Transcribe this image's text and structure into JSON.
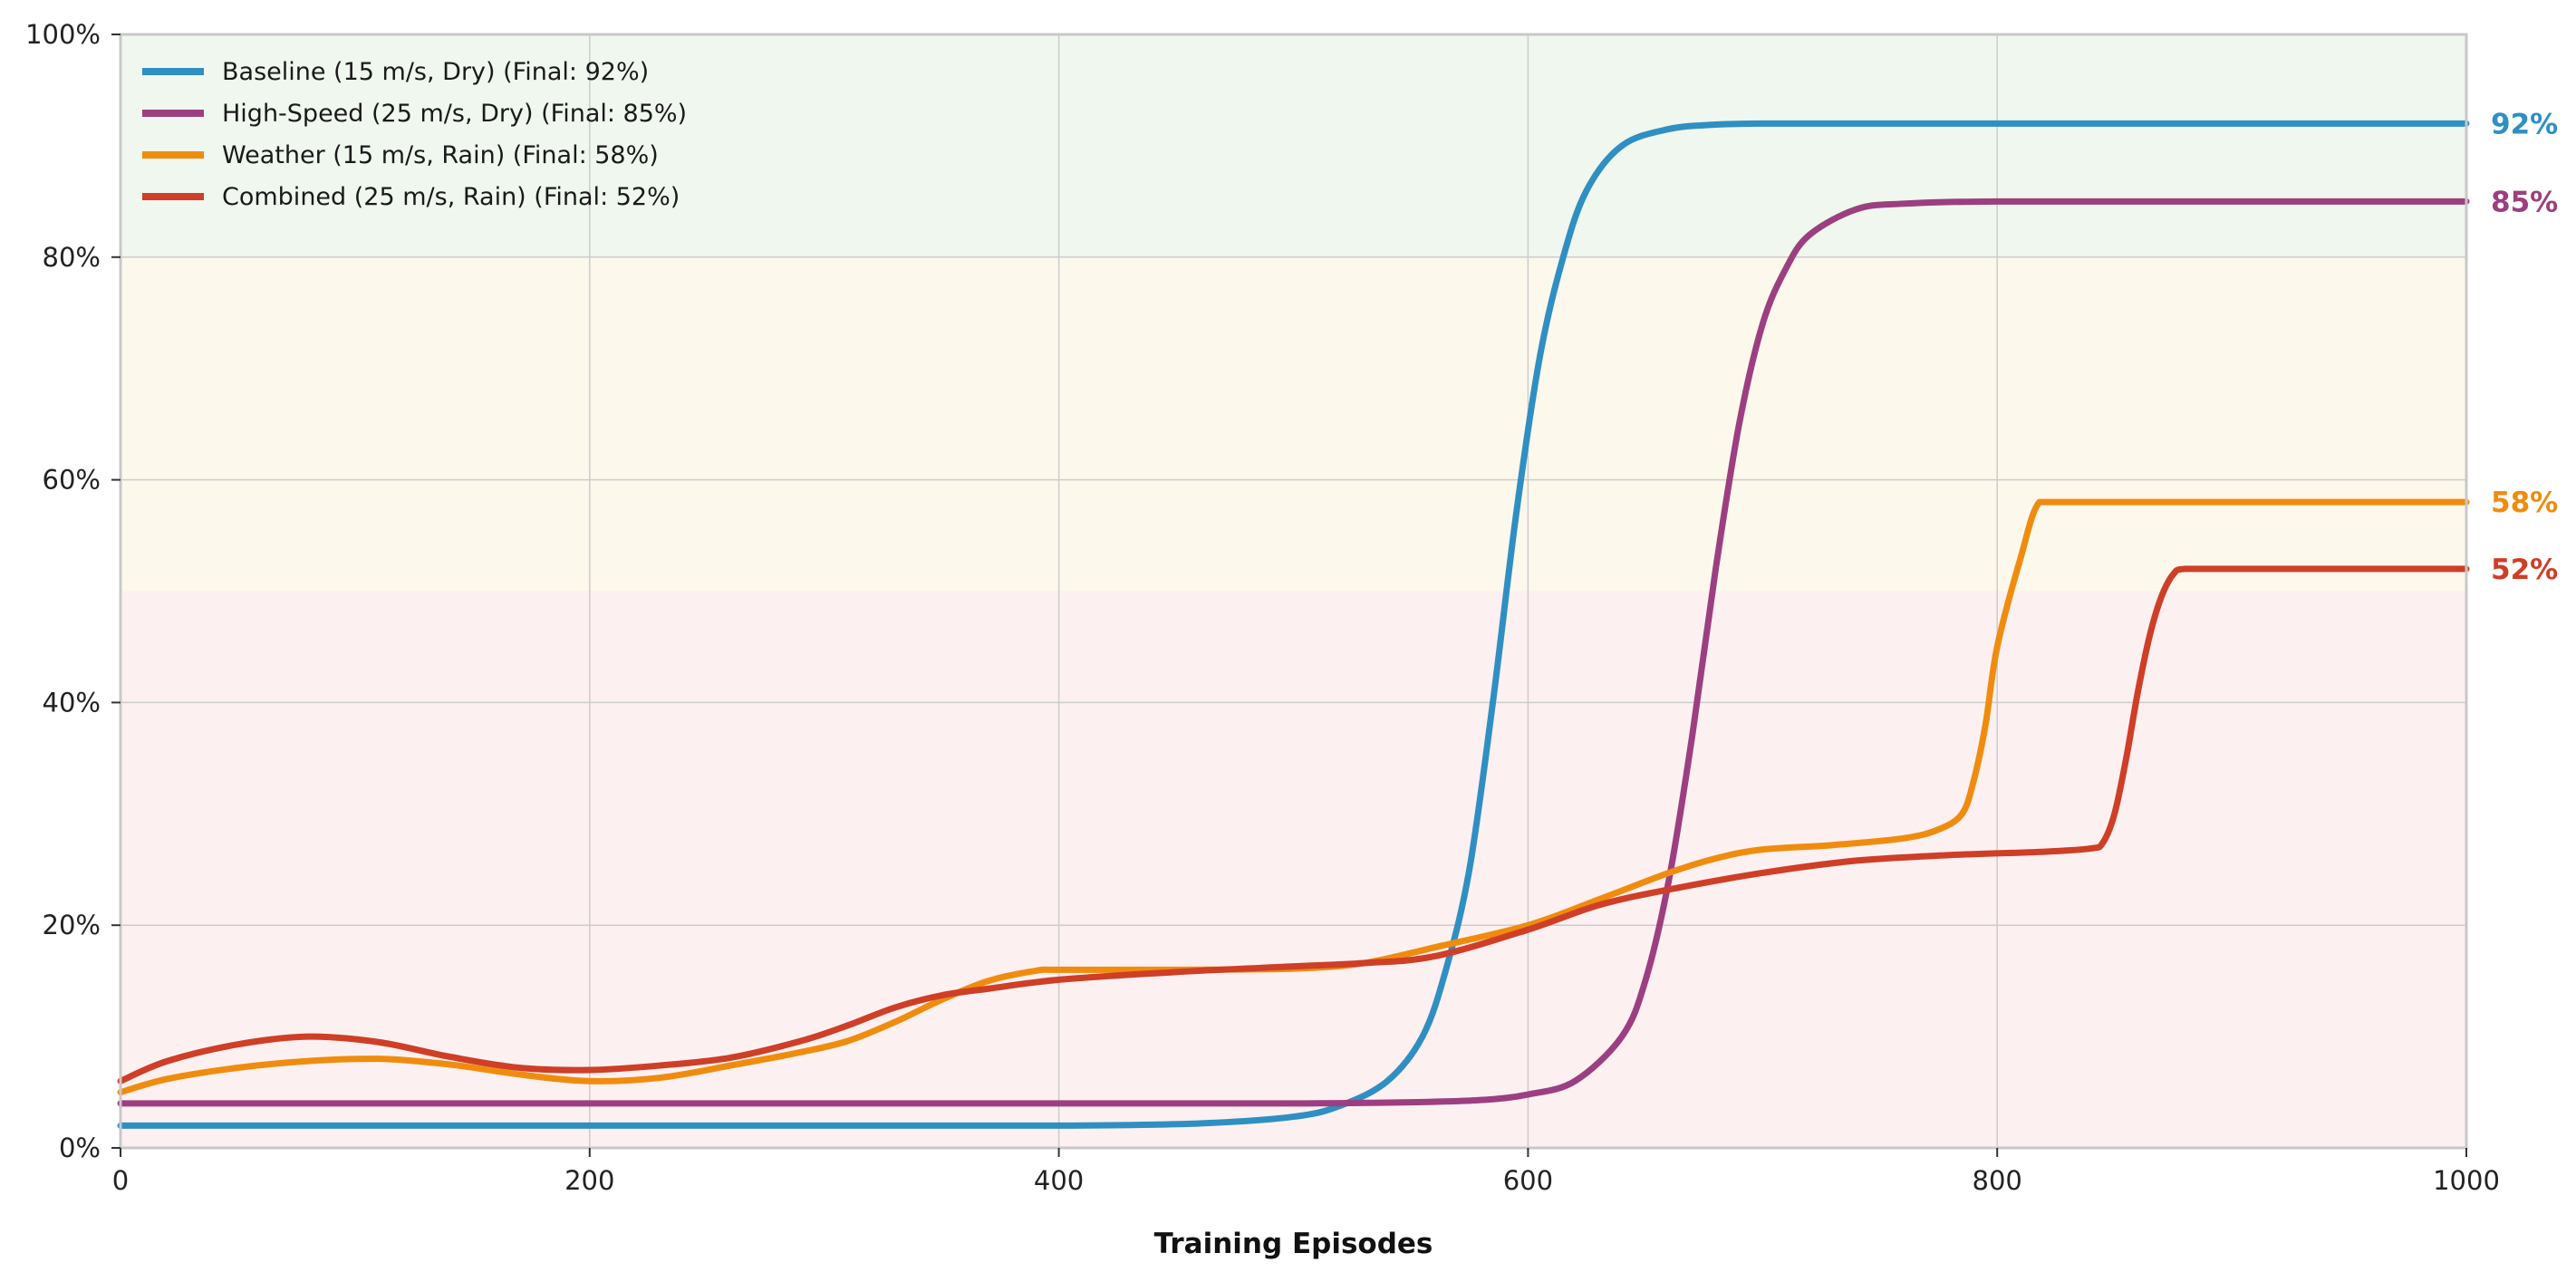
{
  "chart_data": {
    "type": "line",
    "title": "",
    "xlabel": "Training Episodes",
    "ylabel": "",
    "xlim": [
      0,
      1000
    ],
    "ylim": [
      0,
      100
    ],
    "x_ticks": [
      0,
      200,
      400,
      600,
      800,
      1000
    ],
    "y_ticks": [
      0,
      20,
      40,
      60,
      80,
      100
    ],
    "y_tick_suffix": "%",
    "grid": true,
    "legend_position": "top-left",
    "bands": [
      {
        "from": 0,
        "to": 50,
        "color": "#fdf0f1"
      },
      {
        "from": 50,
        "to": 80,
        "color": "#fdf8ec"
      },
      {
        "from": 80,
        "to": 100,
        "color": "#eff7ee"
      }
    ],
    "series": [
      {
        "name": "Baseline (15 m/s, Dry) (Final: 92%)",
        "end_label": "92%",
        "color": "#2f8fc2",
        "x": [
          0,
          100,
          200,
          300,
          400,
          460,
          500,
          520,
          540,
          555,
          565,
          575,
          585,
          595,
          605,
          615,
          625,
          640,
          660,
          680,
          700,
          750,
          800,
          900,
          1000
        ],
        "y": [
          2,
          2,
          2,
          2,
          2,
          2.2,
          2.8,
          3.8,
          6,
          10,
          16,
          25,
          40,
          57,
          71,
          80,
          86,
          90,
          91.5,
          91.9,
          92,
          92,
          92,
          92,
          92
        ]
      },
      {
        "name": "High-Speed (25 m/s, Dry) (Final: 85%)",
        "end_label": "85%",
        "color": "#9c3f80",
        "x": [
          0,
          100,
          200,
          300,
          400,
          500,
          550,
          580,
          600,
          620,
          640,
          650,
          660,
          670,
          680,
          690,
          700,
          710,
          720,
          740,
          760,
          800,
          900,
          1000
        ],
        "y": [
          4,
          4,
          4,
          4,
          4,
          4,
          4.1,
          4.3,
          4.8,
          6,
          10,
          15,
          24,
          37,
          52,
          65,
          74,
          79,
          82,
          84.3,
          84.8,
          85,
          85,
          85
        ]
      },
      {
        "name": "Weather (15 m/s, Rain) (Final: 58%)",
        "end_label": "58%",
        "color": "#ef8c0e",
        "x": [
          0,
          20,
          50,
          80,
          110,
          140,
          170,
          200,
          230,
          260,
          290,
          310,
          330,
          350,
          370,
          390,
          400,
          450,
          500,
          530,
          560,
          600,
          630,
          660,
          680,
          700,
          730,
          760,
          775,
          785,
          790,
          795,
          800,
          810,
          818,
          830,
          900,
          1000
        ],
        "y": [
          5,
          6.2,
          7.2,
          7.8,
          8,
          7.5,
          6.6,
          6,
          6.3,
          7.4,
          8.6,
          9.6,
          11.3,
          13.3,
          15,
          15.9,
          16,
          16,
          16.1,
          16.6,
          18,
          20,
          22.3,
          24.7,
          26,
          26.8,
          27.2,
          27.8,
          28.6,
          30,
          33,
          38,
          45,
          53,
          58,
          58,
          58,
          58
        ]
      },
      {
        "name": "Combined (25 m/s, Rain) (Final: 52%)",
        "end_label": "52%",
        "color": "#cf3e26",
        "x": [
          0,
          20,
          50,
          80,
          110,
          140,
          170,
          200,
          230,
          260,
          290,
          310,
          330,
          350,
          370,
          400,
          450,
          500,
          530,
          560,
          600,
          630,
          660,
          700,
          740,
          780,
          820,
          840,
          845,
          850,
          855,
          860,
          865,
          870,
          875,
          880,
          900,
          1000
        ],
        "y": [
          6,
          7.8,
          9.3,
          10,
          9.5,
          8.2,
          7.2,
          7,
          7.4,
          8.1,
          9.6,
          11,
          12.6,
          13.7,
          14.3,
          15.1,
          15.8,
          16.3,
          16.6,
          17.2,
          19.6,
          21.8,
          23.2,
          24.7,
          25.8,
          26.3,
          26.6,
          26.9,
          27.4,
          30,
          35,
          41,
          46,
          49.5,
          51.5,
          52,
          52,
          52
        ]
      }
    ]
  }
}
